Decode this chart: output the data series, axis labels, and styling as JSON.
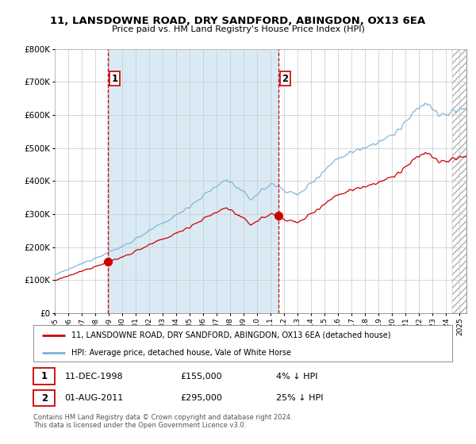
{
  "title": "11, LANSDOWNE ROAD, DRY SANDFORD, ABINGDON, OX13 6EA",
  "subtitle": "Price paid vs. HM Land Registry's House Price Index (HPI)",
  "legend_line1": "11, LANSDOWNE ROAD, DRY SANDFORD, ABINGDON, OX13 6EA (detached house)",
  "legend_line2": "HPI: Average price, detached house, Vale of White Horse",
  "footer": "Contains HM Land Registry data © Crown copyright and database right 2024.\nThis data is licensed under the Open Government Licence v3.0.",
  "sale1_year": 1998.95,
  "sale1_price": 155000,
  "sale2_year": 2011.583,
  "sale2_price": 295000,
  "hpi_color": "#7ab4d8",
  "property_color": "#cc0000",
  "vline_color": "#cc0000",
  "shaded_bg": "#daeaf5",
  "ylim": [
    0,
    800000
  ],
  "xlim_start": 1995.0,
  "xlim_end": 2025.5,
  "hatch_start": 2024.42
}
